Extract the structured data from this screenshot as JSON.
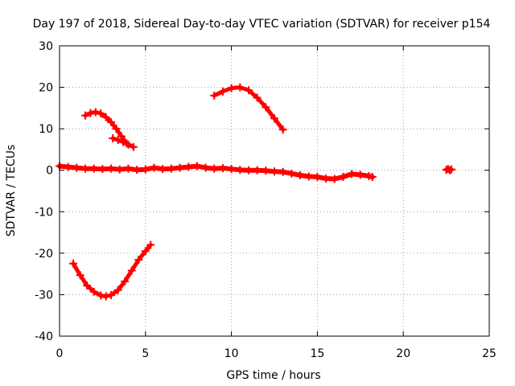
{
  "chart_data": {
    "type": "scatter",
    "title": "Day 197 of 2018, Sidereal Day-to-day VTEC variation (SDTVAR) for receiver p154",
    "xlabel": "GPS time / hours",
    "ylabel": "SDTVAR / TECUs",
    "xlim": [
      0,
      25
    ],
    "ylim": [
      -40,
      30
    ],
    "xticks": [
      0,
      5,
      10,
      15,
      20,
      25
    ],
    "yticks": [
      -40,
      -30,
      -20,
      -10,
      0,
      10,
      20,
      30
    ],
    "grid": true,
    "color": "#ff0000",
    "series": [
      {
        "name": "main-track",
        "x": [
          0.0,
          0.5,
          1.0,
          1.5,
          2.0,
          2.5,
          3.0,
          3.5,
          4.0,
          4.5,
          5.0,
          5.5,
          6.0,
          6.5,
          7.0,
          7.5,
          8.0,
          8.5,
          9.0,
          9.5,
          10.0,
          10.5,
          11.0,
          11.5,
          12.0,
          12.5,
          13.0,
          13.5,
          14.0,
          14.5,
          15.0,
          15.5,
          16.0,
          16.5,
          17.0,
          17.5,
          18.0,
          18.2
        ],
        "y": [
          1.0,
          0.8,
          0.6,
          0.4,
          0.4,
          0.3,
          0.4,
          0.2,
          0.4,
          0.1,
          0.2,
          0.6,
          0.3,
          0.4,
          0.6,
          0.8,
          1.0,
          0.6,
          0.4,
          0.5,
          0.3,
          0.1,
          0.0,
          0.0,
          -0.1,
          -0.3,
          -0.4,
          -0.8,
          -1.2,
          -1.5,
          -1.6,
          -2.0,
          -2.1,
          -1.6,
          -0.9,
          -1.1,
          -1.4,
          -1.6
        ]
      },
      {
        "name": "arc-upper-left",
        "x": [
          1.5,
          1.8,
          2.1,
          2.4,
          2.7,
          3.0,
          3.3,
          3.6,
          3.9
        ],
        "y": [
          13.2,
          13.8,
          14.0,
          13.7,
          12.8,
          11.6,
          10.0,
          8.2,
          6.5
        ]
      },
      {
        "name": "arc-small-left",
        "x": [
          3.1,
          3.4,
          3.7,
          4.0,
          4.3
        ],
        "y": [
          7.7,
          7.3,
          6.8,
          6.2,
          5.6
        ]
      },
      {
        "name": "arc-upper-center",
        "x": [
          9.0,
          9.5,
          10.0,
          10.5,
          11.0,
          11.5,
          12.0,
          12.5,
          13.0
        ],
        "y": [
          18.0,
          19.0,
          19.8,
          20.0,
          19.3,
          17.5,
          15.2,
          12.5,
          9.8
        ]
      },
      {
        "name": "arc-lower-left",
        "x": [
          0.8,
          1.2,
          1.6,
          2.0,
          2.4,
          2.7,
          3.0,
          3.4,
          3.8,
          4.2,
          4.6,
          5.0,
          5.3
        ],
        "y": [
          -22.5,
          -25.3,
          -27.8,
          -29.3,
          -30.2,
          -30.4,
          -30.1,
          -28.9,
          -26.8,
          -24.2,
          -21.6,
          -19.5,
          -18.0
        ]
      },
      {
        "name": "isolated-points",
        "x": [
          22.5,
          22.6,
          22.7,
          22.8
        ],
        "y": [
          0.1,
          0.3,
          0.0,
          0.2
        ]
      }
    ]
  }
}
